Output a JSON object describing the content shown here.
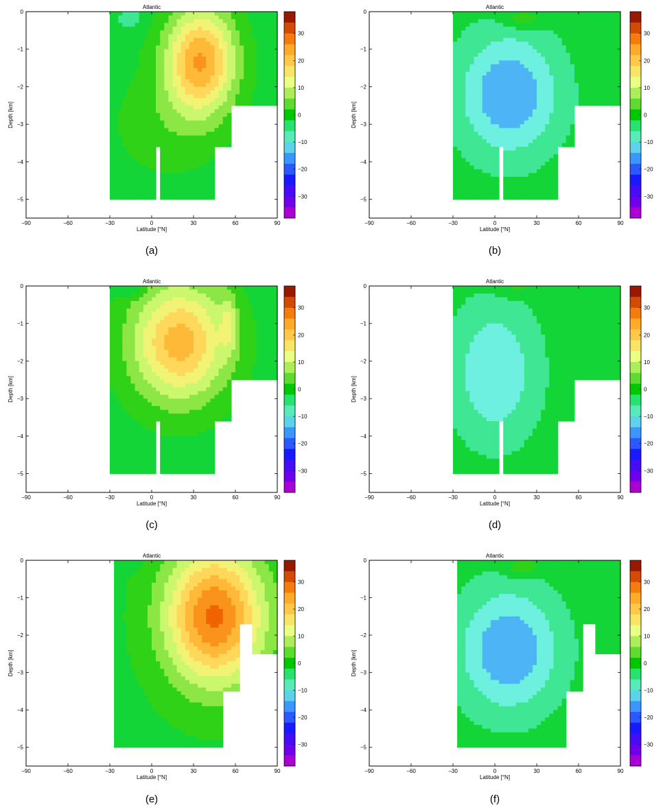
{
  "figure": {
    "panels": [
      {
        "caption": "(a)",
        "title": "Atlantic",
        "variant": "a"
      },
      {
        "caption": "(b)",
        "title": "Atlantic",
        "variant": "b"
      },
      {
        "caption": "(c)",
        "title": "Atlantic",
        "variant": "c"
      },
      {
        "caption": "(d)",
        "title": "Atlantic",
        "variant": "d"
      },
      {
        "caption": "(e)",
        "title": "Atlantic",
        "variant": "e"
      },
      {
        "caption": "(f)",
        "title": "Atlantic",
        "variant": "f"
      }
    ]
  },
  "chart_data": [
    {
      "type": "heatmap",
      "subtype": "filled-contour",
      "panel": "a",
      "title": "Atlantic",
      "xlabel": "Latitude [°N]",
      "ylabel": "Depth [km]",
      "xlim": [
        -90,
        90
      ],
      "ylim": [
        -5.5,
        0
      ],
      "xticks": [
        -90,
        -60,
        -30,
        0,
        30,
        60,
        90
      ],
      "yticks": [
        0,
        -1,
        -2,
        -3,
        -4,
        -5
      ],
      "colorbar": {
        "ticks": [
          30,
          20,
          10,
          0,
          -10,
          -20,
          -30
        ],
        "range": [
          -38,
          38
        ],
        "step": 4
      },
      "max_region": {
        "lat": 35,
        "depth": -1.2,
        "value": 26
      },
      "value_range_estimate": [
        -4,
        26
      ]
    },
    {
      "type": "heatmap",
      "subtype": "filled-contour",
      "panel": "b",
      "title": "Atlantic",
      "xlabel": "Latitude [°N]",
      "ylabel": "Depth [km]",
      "xlim": [
        -90,
        90
      ],
      "ylim": [
        -5.5,
        0
      ],
      "xticks": [
        -90,
        -60,
        -30,
        0,
        30,
        60,
        90
      ],
      "yticks": [
        0,
        -1,
        -2,
        -3,
        -4,
        -5
      ],
      "colorbar": {
        "ticks": [
          30,
          20,
          10,
          0,
          -10,
          -20,
          -30
        ],
        "range": [
          -38,
          38
        ],
        "step": 4
      },
      "min_region": {
        "lat": 15,
        "depth": -2.4,
        "value": -14
      },
      "value_range_estimate": [
        -16,
        6
      ]
    },
    {
      "type": "heatmap",
      "subtype": "filled-contour",
      "panel": "c",
      "title": "Atlantic",
      "xlabel": "Latitude [°N]",
      "ylabel": "Depth [km]",
      "xlim": [
        -90,
        90
      ],
      "ylim": [
        -5.5,
        0
      ],
      "xticks": [
        -90,
        -60,
        -30,
        0,
        30,
        60,
        90
      ],
      "yticks": [
        0,
        -1,
        -2,
        -3,
        -4,
        -5
      ],
      "colorbar": {
        "ticks": [
          30,
          20,
          10,
          0,
          -10,
          -20,
          -30
        ],
        "range": [
          -38,
          38
        ],
        "step": 4
      },
      "max_region": {
        "lat": 20,
        "depth": -1.4,
        "value": 24
      },
      "value_range_estimate": [
        -6,
        26
      ]
    },
    {
      "type": "heatmap",
      "subtype": "filled-contour",
      "panel": "d",
      "title": "Atlantic",
      "xlabel": "Latitude [°N]",
      "ylabel": "Depth [km]",
      "xlim": [
        -90,
        90
      ],
      "ylim": [
        -5.5,
        0
      ],
      "xticks": [
        -90,
        -60,
        -30,
        0,
        30,
        60,
        90
      ],
      "yticks": [
        0,
        -1,
        -2,
        -3,
        -4,
        -5
      ],
      "colorbar": {
        "ticks": [
          30,
          20,
          10,
          0,
          -10,
          -20,
          -30
        ],
        "range": [
          -38,
          38
        ],
        "step": 4
      },
      "min_region": {
        "lat": 0,
        "depth": -2.2,
        "value": -10
      },
      "value_range_estimate": [
        -12,
        6
      ]
    },
    {
      "type": "heatmap",
      "subtype": "filled-contour",
      "panel": "e",
      "title": "Atlantic",
      "xlabel": "Latitude [°N]",
      "ylabel": "Depth [km]",
      "xlim": [
        -90,
        90
      ],
      "ylim": [
        -5.5,
        0
      ],
      "xticks": [
        -90,
        -60,
        -30,
        0,
        30,
        60,
        90
      ],
      "yticks": [
        0,
        -1,
        -2,
        -3,
        -4,
        -5
      ],
      "colorbar": {
        "ticks": [
          30,
          20,
          10,
          0,
          -10,
          -20,
          -30
        ],
        "range": [
          -38,
          38
        ],
        "step": 4
      },
      "max_region": {
        "lat": 48,
        "depth": -1.4,
        "value": 30
      },
      "value_range_estimate": [
        -4,
        30
      ]
    },
    {
      "type": "heatmap",
      "subtype": "filled-contour",
      "panel": "f",
      "title": "Atlantic",
      "xlabel": "Latitude [°N]",
      "ylabel": "Depth [km]",
      "xlim": [
        -90,
        90
      ],
      "ylim": [
        -5.5,
        0
      ],
      "xticks": [
        -90,
        -60,
        -30,
        0,
        30,
        60,
        90
      ],
      "yticks": [
        0,
        -1,
        -2,
        -3,
        -4,
        -5
      ],
      "colorbar": {
        "ticks": [
          30,
          20,
          10,
          0,
          -10,
          -20,
          -30
        ],
        "range": [
          -38,
          38
        ],
        "step": 4
      },
      "min_region": {
        "lat": 15,
        "depth": -2.5,
        "value": -14
      },
      "value_range_estimate": [
        -16,
        6
      ]
    }
  ]
}
